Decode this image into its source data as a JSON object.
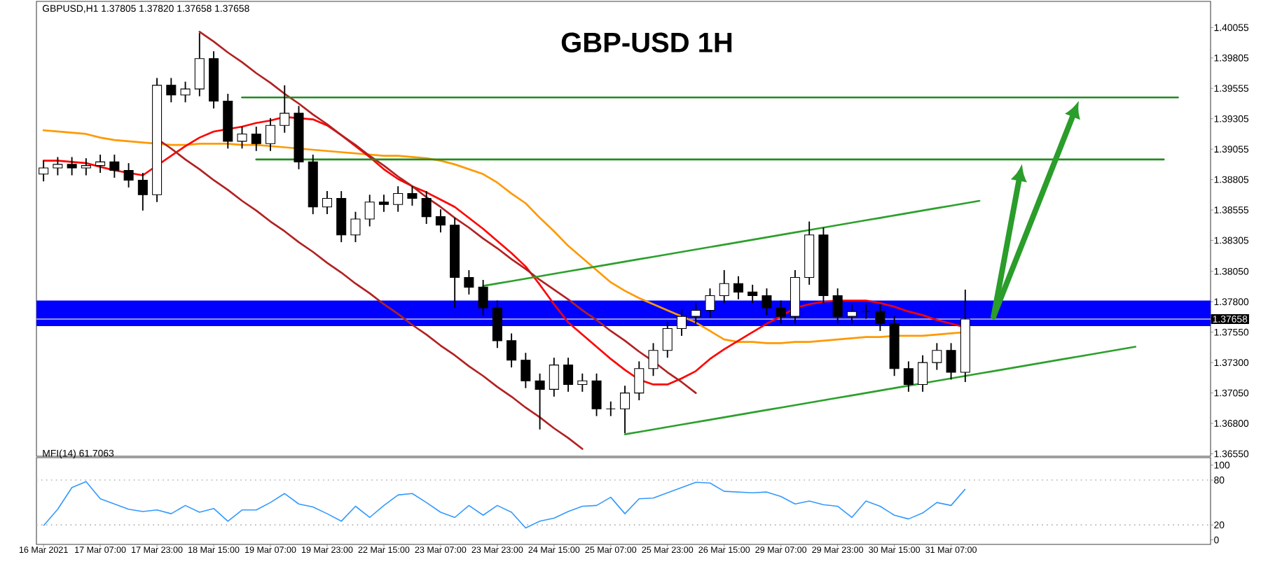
{
  "chart_data": [
    {
      "type": "candlestick",
      "title": "GBP-USD 1H",
      "annotations": [
        "GBPUSD,H1 1.37805 1.37820 1.37658 1.37658"
      ],
      "color": "#000000",
      "tick_labels": "y",
      "ylim": [
        1.3653,
        1.4027
      ],
      "yticks": [
        {
          "value": 1.40055,
          "label": "1.40055"
        },
        {
          "value": 1.39805,
          "label": "1.39805"
        },
        {
          "value": 1.39555,
          "label": "1.39555"
        },
        {
          "value": 1.39305,
          "label": "1.39305"
        },
        {
          "value": 1.39055,
          "label": "1.39055"
        },
        {
          "value": 1.38805,
          "label": "1.38805"
        },
        {
          "value": 1.38555,
          "label": "1.38555"
        },
        {
          "value": 1.38305,
          "label": "1.38305"
        },
        {
          "value": 1.3805,
          "label": "1.38050"
        },
        {
          "value": 1.378,
          "label": "1.37800"
        },
        {
          "value": 1.3755,
          "label": "1.37550"
        },
        {
          "value": 1.373,
          "label": "1.37300"
        },
        {
          "value": 1.3705,
          "label": "1.37050"
        },
        {
          "value": 1.368,
          "label": "1.36800"
        },
        {
          "value": 1.3655,
          "label": "1.36550"
        }
      ],
      "categories": [
        null,
        null,
        null,
        null,
        null,
        null,
        null,
        null,
        null,
        null,
        null,
        null,
        null,
        null,
        null,
        null,
        null,
        null,
        null,
        null,
        null,
        null,
        null,
        null,
        null,
        null,
        null,
        null,
        null,
        null,
        null,
        null,
        null,
        null,
        null,
        null,
        null,
        null,
        null,
        null,
        null,
        null,
        null,
        null,
        null,
        null,
        null,
        null,
        null,
        null,
        null,
        null,
        null,
        null,
        null,
        null,
        null,
        null,
        null,
        null,
        null,
        null,
        null,
        null,
        null,
        null,
        null,
        null,
        null,
        null,
        null,
        null,
        null,
        null,
        null,
        null,
        null,
        null,
        null,
        null,
        null,
        null,
        null
      ],
      "ohlc": [
        [
          1.3885,
          1.3896,
          1.3879,
          1.389
        ],
        [
          1.389,
          1.3899,
          1.3884,
          1.3893
        ],
        [
          1.3893,
          1.3899,
          1.3884,
          1.389
        ],
        [
          1.389,
          1.3898,
          1.3884,
          1.3892
        ],
        [
          1.3892,
          1.3901,
          1.3886,
          1.3895
        ],
        [
          1.3895,
          1.3901,
          1.3882,
          1.3888
        ],
        [
          1.3888,
          1.3894,
          1.3874,
          1.388
        ],
        [
          1.388,
          1.3886,
          1.3855,
          1.3868
        ],
        [
          1.3868,
          1.3964,
          1.3862,
          1.3958
        ],
        [
          1.3958,
          1.3964,
          1.3944,
          1.395
        ],
        [
          1.395,
          1.3961,
          1.3944,
          1.3955
        ],
        [
          1.3955,
          1.4001,
          1.3949,
          1.398
        ],
        [
          1.398,
          1.3986,
          1.3939,
          1.3945
        ],
        [
          1.3945,
          1.3951,
          1.3906,
          1.3912
        ],
        [
          1.3912,
          1.3924,
          1.3906,
          1.3918
        ],
        [
          1.3918,
          1.3924,
          1.3904,
          1.391
        ],
        [
          1.391,
          1.3931,
          1.3904,
          1.3925
        ],
        [
          1.3925,
          1.3958,
          1.3919,
          1.3935
        ],
        [
          1.3935,
          1.3941,
          1.3889,
          1.3895
        ],
        [
          1.3895,
          1.3901,
          1.3852,
          1.3858
        ],
        [
          1.3858,
          1.3871,
          1.3852,
          1.3865
        ],
        [
          1.3865,
          1.3871,
          1.3829,
          1.3835
        ],
        [
          1.3835,
          1.3854,
          1.3829,
          1.3848
        ],
        [
          1.3848,
          1.3868,
          1.3842,
          1.3862
        ],
        [
          1.3862,
          1.3868,
          1.3854,
          1.386
        ],
        [
          1.386,
          1.3875,
          1.3854,
          1.3869
        ],
        [
          1.3869,
          1.3875,
          1.3859,
          1.3865
        ],
        [
          1.3865,
          1.3871,
          1.3844,
          1.385
        ],
        [
          1.385,
          1.3856,
          1.3837,
          1.3843
        ],
        [
          1.3843,
          1.3849,
          1.3775,
          1.38
        ],
        [
          1.38,
          1.3806,
          1.3786,
          1.3792
        ],
        [
          1.3792,
          1.3798,
          1.3769,
          1.3775
        ],
        [
          1.3775,
          1.3781,
          1.3742,
          1.3748
        ],
        [
          1.3748,
          1.3754,
          1.3726,
          1.3732
        ],
        [
          1.3732,
          1.3738,
          1.3709,
          1.3715
        ],
        [
          1.3715,
          1.3721,
          1.3675,
          1.3708
        ],
        [
          1.3708,
          1.3734,
          1.3702,
          1.3728
        ],
        [
          1.3728,
          1.3734,
          1.3706,
          1.3712
        ],
        [
          1.3712,
          1.3721,
          1.3706,
          1.3715
        ],
        [
          1.3715,
          1.3721,
          1.3686,
          1.3692
        ],
        [
          1.3692,
          1.3698,
          1.3686,
          1.3692
        ],
        [
          1.3692,
          1.3711,
          1.3672,
          1.3705
        ],
        [
          1.3705,
          1.3731,
          1.3699,
          1.3725
        ],
        [
          1.3725,
          1.3746,
          1.3719,
          1.374
        ],
        [
          1.374,
          1.3764,
          1.3734,
          1.3758
        ],
        [
          1.3758,
          1.3774,
          1.3752,
          1.3768
        ],
        [
          1.3768,
          1.3779,
          1.3762,
          1.3773
        ],
        [
          1.3773,
          1.3791,
          1.3767,
          1.3785
        ],
        [
          1.3785,
          1.3806,
          1.3779,
          1.3795
        ],
        [
          1.3795,
          1.3801,
          1.3782,
          1.3788
        ],
        [
          1.3788,
          1.3794,
          1.3779,
          1.3785
        ],
        [
          1.3785,
          1.3791,
          1.3769,
          1.3775
        ],
        [
          1.3775,
          1.3781,
          1.3762,
          1.3768
        ],
        [
          1.3768,
          1.3806,
          1.3762,
          1.38
        ],
        [
          1.38,
          1.3846,
          1.3794,
          1.3835
        ],
        [
          1.3835,
          1.3841,
          1.3779,
          1.3785
        ],
        [
          1.3785,
          1.3791,
          1.3762,
          1.3768
        ],
        [
          1.3768,
          1.3778,
          1.3762,
          1.3772
        ],
        [
          1.3772,
          1.3778,
          1.3766,
          1.3772
        ],
        [
          1.3772,
          1.3778,
          1.3756,
          1.3762
        ],
        [
          1.3762,
          1.3768,
          1.3719,
          1.3725
        ],
        [
          1.3725,
          1.3731,
          1.3706,
          1.3712
        ],
        [
          1.3712,
          1.3736,
          1.3706,
          1.373
        ],
        [
          1.373,
          1.3746,
          1.3724,
          1.374
        ],
        [
          1.374,
          1.3746,
          1.3716,
          1.3722
        ],
        [
          1.3722,
          1.379,
          1.3714,
          1.37658
        ],
        null,
        null,
        null,
        null,
        null,
        null,
        null,
        null,
        null,
        null,
        null,
        null,
        null,
        null,
        null,
        null,
        null
      ],
      "ref_lines": [
        {
          "axis": "y",
          "value": 1.37658,
          "label": "1.37658",
          "color": "#c8c8c8"
        }
      ],
      "bands": [
        {
          "axis": "y",
          "from": 1.376,
          "to": 1.3781,
          "color": "#0000ff"
        }
      ],
      "series": [
        {
          "type": "line",
          "color": "#ff9900",
          "values": [
            1.3921,
            1.392,
            1.3919,
            1.3918,
            1.3915,
            1.3913,
            1.3912,
            1.3911,
            1.391,
            1.3909,
            1.3909,
            1.391,
            1.391,
            1.391,
            1.3909,
            1.3909,
            1.3908,
            1.3907,
            1.3906,
            1.3905,
            1.3904,
            1.3903,
            1.3902,
            1.3901,
            1.39,
            1.39,
            1.3899,
            1.3898,
            1.3896,
            1.3893,
            1.3889,
            1.3885,
            1.3878,
            1.3869,
            1.3861,
            1.3849,
            1.3838,
            1.3826,
            1.3816,
            1.3806,
            1.3796,
            1.3789,
            1.3783,
            1.3778,
            1.3773,
            1.3768,
            1.3763,
            1.3756,
            1.3749,
            1.3747,
            1.3747,
            1.3746,
            1.3746,
            1.3747,
            1.3747,
            1.3748,
            1.3749,
            1.375,
            1.3751,
            1.3751,
            1.3752,
            1.3752,
            1.3752,
            1.3753,
            1.3754,
            1.3755,
            null,
            null,
            null,
            null,
            null,
            null,
            null,
            null,
            null,
            null,
            null,
            null,
            null,
            null,
            null,
            null,
            null
          ]
        },
        {
          "type": "line",
          "color": "#ff0000",
          "values": [
            1.3896,
            1.3896,
            1.3895,
            1.3894,
            1.3891,
            1.3888,
            1.3886,
            1.3884,
            1.3892,
            1.39,
            1.3908,
            1.3915,
            1.392,
            1.3922,
            1.3924,
            1.3927,
            1.3929,
            1.3932,
            1.3931,
            1.393,
            1.3925,
            1.3917,
            1.3908,
            1.3899,
            1.3889,
            1.3881,
            1.3875,
            1.387,
            1.3864,
            1.3858,
            1.3849,
            1.384,
            1.383,
            1.382,
            1.3809,
            1.3794,
            1.3778,
            1.3763,
            1.3753,
            1.3743,
            1.3733,
            1.3724,
            1.3716,
            1.3712,
            1.3712,
            1.3717,
            1.3723,
            1.3733,
            1.3741,
            1.3748,
            1.3755,
            1.3762,
            1.3768,
            1.3775,
            1.3778,
            1.378,
            1.3781,
            1.3781,
            1.3781,
            1.3779,
            1.3776,
            1.3772,
            1.3769,
            1.3765,
            1.3762,
            1.3759,
            null,
            null,
            null,
            null,
            null,
            null,
            null,
            null,
            null,
            null,
            null,
            null,
            null,
            null,
            null,
            null,
            null
          ]
        },
        {
          "type": "line",
          "color": "#b22222",
          "values": [
            null,
            null,
            null,
            null,
            null,
            null,
            null,
            null,
            null,
            null,
            null,
            1.4002,
            1.3994,
            1.3985,
            1.3977,
            1.3968,
            1.396,
            1.3951,
            1.3943,
            1.3934,
            1.3926,
            1.3917,
            1.3909,
            1.39,
            1.3892,
            1.3883,
            1.3875,
            1.3866,
            1.3858,
            1.3849,
            1.3841,
            1.3832,
            1.3824,
            1.3815,
            1.3807,
            1.3798,
            1.379,
            1.3782,
            1.3773,
            1.3765,
            1.3756,
            1.3748,
            1.3739,
            1.3731,
            1.3722,
            1.3714,
            1.3705,
            null,
            null,
            null,
            null,
            null,
            null,
            null,
            null,
            null,
            null,
            null,
            null,
            null,
            null,
            null,
            null,
            null,
            null,
            null,
            null,
            null,
            null,
            null,
            null,
            null,
            null,
            null,
            null,
            null,
            null,
            null,
            null,
            null,
            null,
            null,
            null
          ]
        },
        {
          "type": "line",
          "color": "#b22222",
          "values": [
            null,
            null,
            null,
            null,
            null,
            null,
            null,
            null,
            1.3914,
            1.3906,
            1.3897,
            1.3889,
            1.388,
            1.3872,
            1.3863,
            1.3855,
            1.3846,
            1.3838,
            1.3829,
            1.3821,
            1.3812,
            1.3804,
            1.3795,
            1.3787,
            1.3778,
            1.377,
            1.3761,
            1.3753,
            1.3744,
            1.3736,
            1.3727,
            1.3719,
            1.371,
            1.3702,
            1.3693,
            1.3685,
            1.3676,
            1.3668,
            1.3659,
            null,
            null,
            null,
            null,
            null,
            null,
            null,
            null,
            null,
            null,
            null,
            null,
            null,
            null,
            null,
            null,
            null,
            null,
            null,
            null,
            null,
            null,
            null,
            null,
            null,
            null,
            null,
            null,
            null,
            null,
            null,
            null,
            null,
            null,
            null,
            null,
            null,
            null,
            null,
            null,
            null,
            null,
            null,
            null
          ]
        },
        {
          "type": "line",
          "color": "#2ca02c",
          "values": [
            null,
            null,
            null,
            null,
            null,
            null,
            null,
            null,
            null,
            null,
            null,
            null,
            null,
            null,
            null,
            null,
            null,
            null,
            null,
            null,
            null,
            null,
            null,
            null,
            null,
            null,
            null,
            null,
            null,
            null,
            null,
            1.3793,
            1.3795,
            1.3797,
            1.3799,
            1.3801,
            1.3803,
            1.3805,
            1.3807,
            1.3809,
            1.3811,
            1.3813,
            1.3815,
            1.3817,
            1.3819,
            1.3821,
            1.3823,
            1.3825,
            1.3827,
            1.3829,
            1.3831,
            1.3833,
            1.3835,
            1.3837,
            1.3839,
            1.3841,
            1.3843,
            1.3845,
            1.3847,
            1.3849,
            1.3851,
            1.3853,
            1.3855,
            1.3857,
            1.3859,
            1.3861,
            1.3863,
            null,
            null,
            null,
            null,
            null,
            null,
            null,
            null,
            null,
            null,
            null,
            null,
            null,
            null,
            null,
            null
          ]
        },
        {
          "type": "line",
          "color": "#2ca02c",
          "values": [
            null,
            null,
            null,
            null,
            null,
            null,
            null,
            null,
            null,
            null,
            null,
            null,
            null,
            null,
            null,
            null,
            null,
            null,
            null,
            null,
            null,
            null,
            null,
            null,
            null,
            null,
            null,
            null,
            null,
            null,
            null,
            null,
            null,
            null,
            null,
            null,
            null,
            null,
            null,
            null,
            null,
            1.3671,
            1.3673,
            1.3675,
            1.3677,
            1.3679,
            1.3681,
            1.3683,
            1.3685,
            1.3687,
            1.3689,
            1.3691,
            1.3693,
            1.3695,
            1.3697,
            1.3699,
            1.3701,
            1.3703,
            1.3705,
            1.3707,
            1.3709,
            1.3711,
            1.3713,
            1.3715,
            1.3717,
            1.3719,
            1.3721,
            1.3723,
            1.3725,
            1.3727,
            1.3729,
            1.3731,
            1.3733,
            1.3735,
            1.3737,
            1.3739,
            1.3741,
            1.3743,
            null,
            null,
            null,
            null,
            null
          ]
        },
        {
          "type": "line",
          "color": "#228b22",
          "values": [
            null,
            null,
            null,
            null,
            null,
            null,
            null,
            null,
            null,
            null,
            null,
            null,
            null,
            null,
            1.3948,
            1.3948,
            1.3948,
            1.3948,
            1.3948,
            1.3948,
            1.3948,
            1.3948,
            1.3948,
            1.3948,
            1.3948,
            1.3948,
            1.3948,
            1.3948,
            1.3948,
            1.3948,
            1.3948,
            1.3948,
            1.3948,
            1.3948,
            1.3948,
            1.3948,
            1.3948,
            1.3948,
            1.3948,
            1.3948,
            1.3948,
            1.3948,
            1.3948,
            1.3948,
            1.3948,
            1.3948,
            1.3948,
            1.3948,
            1.3948,
            1.3948,
            1.3948,
            1.3948,
            1.3948,
            1.3948,
            1.3948,
            1.3948,
            1.3948,
            1.3948,
            1.3948,
            1.3948,
            1.3948,
            1.3948,
            1.3948,
            1.3948,
            1.3948,
            1.3948,
            1.3948,
            1.3948,
            1.3948,
            1.3948,
            1.3948,
            1.3948,
            1.3948,
            1.3948,
            1.3948,
            1.3948,
            1.3948,
            1.3948,
            1.3948,
            1.3948,
            1.3948,
            null,
            null
          ]
        },
        {
          "type": "line",
          "color": "#228b22",
          "values": [
            null,
            null,
            null,
            null,
            null,
            null,
            null,
            null,
            null,
            null,
            null,
            null,
            null,
            null,
            null,
            1.3897,
            1.3897,
            1.3897,
            1.3897,
            1.3897,
            1.3897,
            1.3897,
            1.3897,
            1.3897,
            1.3897,
            1.3897,
            1.3897,
            1.3897,
            1.3897,
            1.3897,
            1.3897,
            1.3897,
            1.3897,
            1.3897,
            1.3897,
            1.3897,
            1.3897,
            1.3897,
            1.3897,
            1.3897,
            1.3897,
            1.3897,
            1.3897,
            1.3897,
            1.3897,
            1.3897,
            1.3897,
            1.3897,
            1.3897,
            1.3897,
            1.3897,
            1.3897,
            1.3897,
            1.3897,
            1.3897,
            1.3897,
            1.3897,
            1.3897,
            1.3897,
            1.3897,
            1.3897,
            1.3897,
            1.3897,
            1.3897,
            1.3897,
            1.3897,
            1.3897,
            1.3897,
            1.3897,
            1.3897,
            1.3897,
            1.3897,
            1.3897,
            1.3897,
            1.3897,
            1.3897,
            1.3897,
            1.3897,
            1.3897,
            1.3897,
            null,
            null,
            null
          ]
        }
      ]
    },
    {
      "type": "line",
      "title": "MFI(14) 61.7063",
      "color": "#3399ff",
      "ylim": [
        -6,
        110
      ],
      "yticks": [
        0,
        20,
        80,
        100
      ],
      "categories": [
        "16 Mar 2021",
        null,
        null,
        null,
        "17 Mar 07:00",
        null,
        null,
        null,
        "17 Mar 23:00",
        null,
        null,
        null,
        "18 Mar 15:00",
        null,
        null,
        null,
        "19 Mar 07:00",
        null,
        null,
        null,
        "19 Mar 23:00",
        null,
        null,
        null,
        "22 Mar 15:00",
        null,
        null,
        null,
        "23 Mar 07:00",
        null,
        null,
        null,
        "23 Mar 23:00",
        null,
        null,
        null,
        "24 Mar 15:00",
        null,
        null,
        null,
        "25 Mar 07:00",
        null,
        null,
        null,
        "25 Mar 23:00",
        null,
        null,
        null,
        "26 Mar 15:00",
        null,
        null,
        null,
        "29 Mar 07:00",
        null,
        null,
        null,
        "29 Mar 23:00",
        null,
        null,
        null,
        "30 Mar 15:00",
        null,
        null,
        null,
        "31 Mar 07:00",
        null,
        null,
        null,
        null,
        null,
        null,
        null,
        null,
        null,
        null,
        null,
        null,
        null,
        null,
        null,
        null,
        null,
        null
      ],
      "ref_lines": [
        {
          "axis": "y",
          "value": 80,
          "color": "#b0b0b0",
          "line_style": "dotted"
        },
        {
          "axis": "y",
          "value": 20,
          "color": "#b0b0b0",
          "line_style": "dotted"
        }
      ],
      "values": [
        19,
        41,
        70,
        78,
        55,
        48,
        41,
        38,
        40,
        35,
        46,
        37,
        42,
        25,
        40,
        40,
        50,
        62,
        48,
        44,
        35,
        25,
        45,
        30,
        46,
        60,
        62,
        50,
        37,
        30,
        46,
        33,
        46,
        37,
        16,
        25,
        29,
        38,
        45,
        46,
        57,
        35,
        55,
        56,
        63,
        70,
        77,
        76,
        65,
        64,
        63,
        64,
        58,
        48,
        52,
        47,
        45,
        30,
        52,
        45,
        33,
        28,
        36,
        50,
        46,
        68,
        null,
        null,
        null,
        null,
        null,
        null,
        null,
        null,
        null,
        null,
        null,
        null,
        null,
        null,
        null,
        null,
        null
      ]
    }
  ]
}
